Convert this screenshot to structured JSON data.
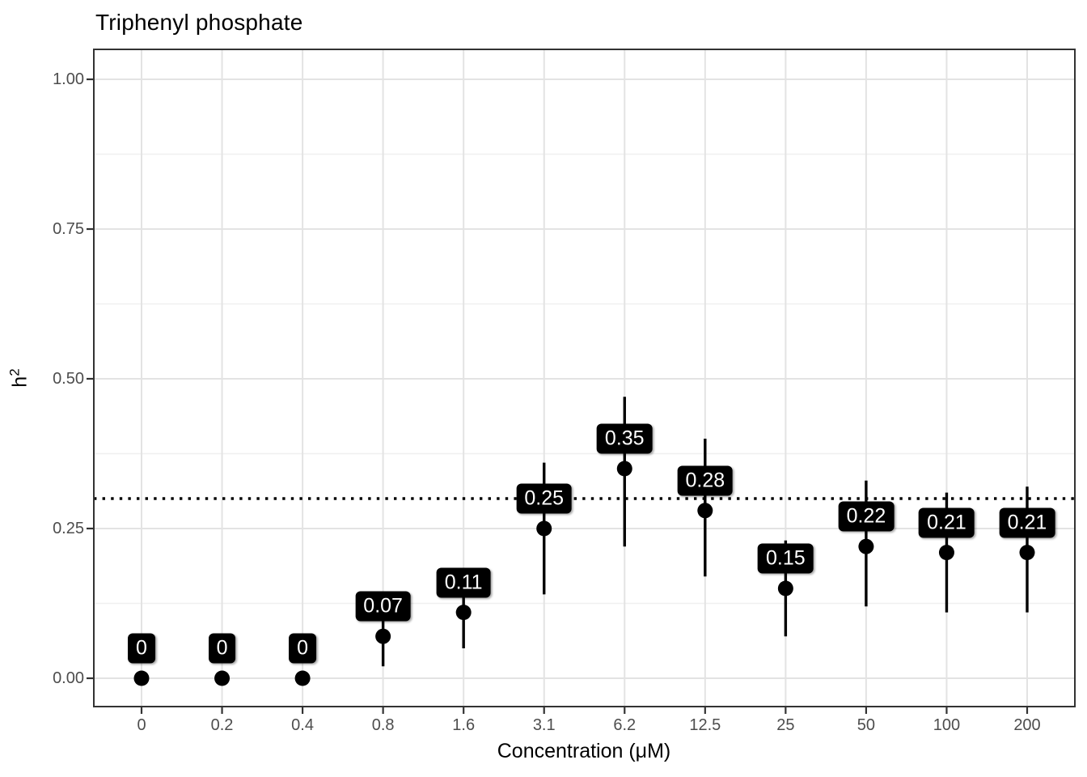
{
  "title": "Triphenyl phosphate",
  "x_axis": {
    "title": "Concentration (μM)"
  },
  "y_axis": {
    "title_base": "h",
    "title_sup": "2"
  },
  "chart_data": {
    "type": "scatter",
    "subtype": "pointrange-with-labels",
    "title": "Triphenyl phosphate",
    "xlabel": "Concentration (μM)",
    "ylabel": "h^2",
    "categories": [
      "0",
      "0.2",
      "0.4",
      "0.8",
      "1.6",
      "3.1",
      "6.2",
      "12.5",
      "25",
      "50",
      "100",
      "200"
    ],
    "values": [
      0.0,
      0.0,
      0.0,
      0.07,
      0.11,
      0.25,
      0.35,
      0.28,
      0.15,
      0.22,
      0.21,
      0.21
    ],
    "point_labels": [
      "0",
      "0",
      "0",
      "0.07",
      "0.11",
      "0.25",
      "0.35",
      "0.28",
      "0.15",
      "0.22",
      "0.21",
      "0.21"
    ],
    "error_low": [
      null,
      null,
      null,
      0.02,
      0.05,
      0.14,
      0.22,
      0.17,
      0.07,
      0.12,
      0.11,
      0.11
    ],
    "error_high": [
      null,
      null,
      null,
      0.12,
      0.17,
      0.36,
      0.47,
      0.4,
      0.23,
      0.33,
      0.31,
      0.32
    ],
    "reference_line": {
      "y": 0.3,
      "style": "dotted",
      "color": "#000000"
    },
    "ylim": [
      -0.047,
      1.05
    ],
    "yticks": {
      "values": [
        0,
        0.25,
        0.5,
        0.75,
        1
      ],
      "labels": [
        "0.00",
        "0.25",
        "0.50",
        "0.75",
        "1.00"
      ]
    },
    "yminor": [
      0.125,
      0.375,
      0.625,
      0.875
    ],
    "grid": "on",
    "legend": "none",
    "colors": {
      "point": "#000000",
      "error_bar": "#000000",
      "label_bg": "#000000",
      "label_text": "#ffffff",
      "grid_major": "#e3e3e3",
      "grid_minor": "#f0f0f0",
      "panel_border": "#333333",
      "axis_tick": "#333333",
      "tick_text": "#4d4d4d"
    }
  }
}
